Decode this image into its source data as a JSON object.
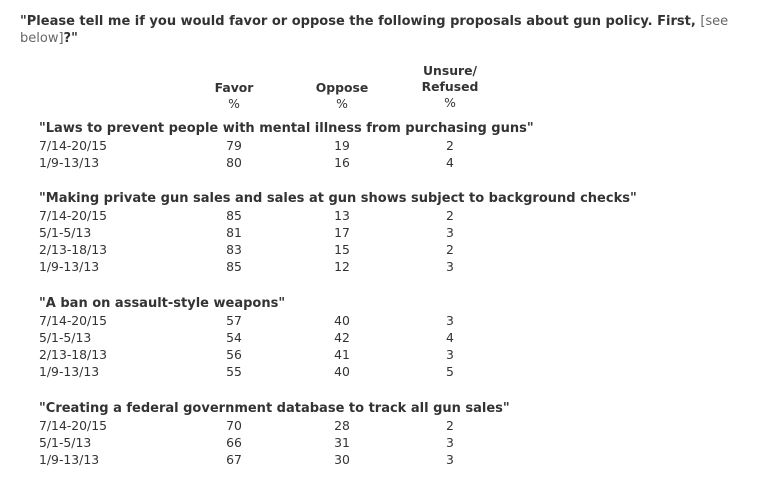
{
  "question": {
    "text": "\"Please tell me if you would favor or oppose the following proposals about gun policy. First,",
    "note": "[see below]",
    "close": "?\""
  },
  "columns": {
    "favor": {
      "label": "Favor",
      "unit": "%"
    },
    "oppose": {
      "label": "Oppose",
      "unit": "%"
    },
    "unsure": {
      "label_line1": "Unsure/",
      "label_line2": "Refused",
      "unit": "%"
    }
  },
  "sections": [
    {
      "title": "\"Laws to prevent people with mental illness from purchasing guns\"",
      "rows": [
        {
          "date": "7/14-20/15",
          "favor": "79",
          "oppose": "19",
          "unsure": "2"
        },
        {
          "date": "1/9-13/13",
          "favor": "80",
          "oppose": "16",
          "unsure": "4"
        }
      ]
    },
    {
      "title": "\"Making private gun sales and sales at gun shows subject to background checks\"",
      "rows": [
        {
          "date": "7/14-20/15",
          "favor": "85",
          "oppose": "13",
          "unsure": "2"
        },
        {
          "date": "5/1-5/13",
          "favor": "81",
          "oppose": "17",
          "unsure": "3"
        },
        {
          "date": "2/13-18/13",
          "favor": "83",
          "oppose": "15",
          "unsure": "2"
        },
        {
          "date": "1/9-13/13",
          "favor": "85",
          "oppose": "12",
          "unsure": "3"
        }
      ]
    },
    {
      "title": "\"A ban on assault-style weapons\"",
      "rows": [
        {
          "date": "7/14-20/15",
          "favor": "57",
          "oppose": "40",
          "unsure": "3"
        },
        {
          "date": "5/1-5/13",
          "favor": "54",
          "oppose": "42",
          "unsure": "4"
        },
        {
          "date": "2/13-18/13",
          "favor": "56",
          "oppose": "41",
          "unsure": "3"
        },
        {
          "date": "1/9-13/13",
          "favor": "55",
          "oppose": "40",
          "unsure": "5"
        }
      ]
    },
    {
      "title": "\"Creating a federal government database to track all gun sales\"",
      "rows": [
        {
          "date": "7/14-20/15",
          "favor": "70",
          "oppose": "28",
          "unsure": "2"
        },
        {
          "date": "5/1-5/13",
          "favor": "66",
          "oppose": "31",
          "unsure": "3"
        },
        {
          "date": "1/9-13/13",
          "favor": "67",
          "oppose": "30",
          "unsure": "3"
        }
      ]
    }
  ]
}
